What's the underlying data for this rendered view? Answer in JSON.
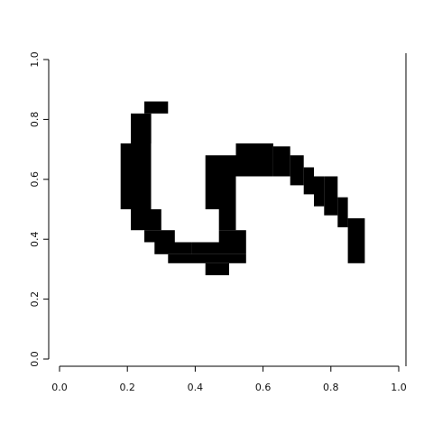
{
  "chart_data": {
    "type": "heatmap",
    "title": "",
    "xlabel": "",
    "ylabel": "",
    "xlim": [
      0,
      1
    ],
    "ylim": [
      0,
      1
    ],
    "grid": false,
    "axes_drawn": [
      "bottom",
      "left",
      "right"
    ],
    "x_ticks": [
      {
        "value": 0.0,
        "label": "0.0"
      },
      {
        "value": 0.2,
        "label": "0.2"
      },
      {
        "value": 0.4,
        "label": "0.4"
      },
      {
        "value": 0.6,
        "label": "0.6"
      },
      {
        "value": 0.8,
        "label": "0.8"
      },
      {
        "value": 1.0,
        "label": "1.0"
      }
    ],
    "y_ticks": [
      {
        "value": 0.0,
        "label": "0.0"
      },
      {
        "value": 0.2,
        "label": "0.2"
      },
      {
        "value": 0.4,
        "label": "0.4"
      },
      {
        "value": 0.6,
        "label": "0.6"
      },
      {
        "value": 0.8,
        "label": "0.8"
      },
      {
        "value": 1.0,
        "label": "1.0"
      }
    ],
    "cell_width": 0.0357,
    "cell_height": 0.0357,
    "fill_color": "#000000",
    "background_color": "#ffffff",
    "filled_cells": [
      {
        "x": [
          0.25,
          0.32
        ],
        "y": [
          0.82,
          0.86
        ]
      },
      {
        "x": [
          0.21,
          0.27
        ],
        "y": [
          0.72,
          0.82
        ]
      },
      {
        "x": [
          0.18,
          0.27
        ],
        "y": [
          0.5,
          0.72
        ]
      },
      {
        "x": [
          0.21,
          0.3
        ],
        "y": [
          0.43,
          0.5
        ]
      },
      {
        "x": [
          0.25,
          0.34
        ],
        "y": [
          0.39,
          0.43
        ]
      },
      {
        "x": [
          0.28,
          0.39
        ],
        "y": [
          0.35,
          0.39
        ]
      },
      {
        "x": [
          0.32,
          0.55
        ],
        "y": [
          0.32,
          0.35
        ]
      },
      {
        "x": [
          0.43,
          0.5
        ],
        "y": [
          0.28,
          0.32
        ]
      },
      {
        "x": [
          0.39,
          0.55
        ],
        "y": [
          0.35,
          0.39
        ]
      },
      {
        "x": [
          0.47,
          0.55
        ],
        "y": [
          0.39,
          0.43
        ]
      },
      {
        "x": [
          0.47,
          0.52
        ],
        "y": [
          0.43,
          0.5
        ]
      },
      {
        "x": [
          0.43,
          0.52
        ],
        "y": [
          0.5,
          0.68
        ]
      },
      {
        "x": [
          0.52,
          0.63
        ],
        "y": [
          0.61,
          0.72
        ]
      },
      {
        "x": [
          0.63,
          0.68
        ],
        "y": [
          0.61,
          0.71
        ]
      },
      {
        "x": [
          0.68,
          0.72
        ],
        "y": [
          0.58,
          0.68
        ]
      },
      {
        "x": [
          0.72,
          0.75
        ],
        "y": [
          0.55,
          0.64
        ]
      },
      {
        "x": [
          0.75,
          0.78
        ],
        "y": [
          0.51,
          0.61
        ]
      },
      {
        "x": [
          0.78,
          0.82
        ],
        "y": [
          0.48,
          0.61
        ]
      },
      {
        "x": [
          0.82,
          0.85
        ],
        "y": [
          0.44,
          0.54
        ]
      },
      {
        "x": [
          0.85,
          0.9
        ],
        "y": [
          0.32,
          0.47
        ]
      }
    ]
  }
}
